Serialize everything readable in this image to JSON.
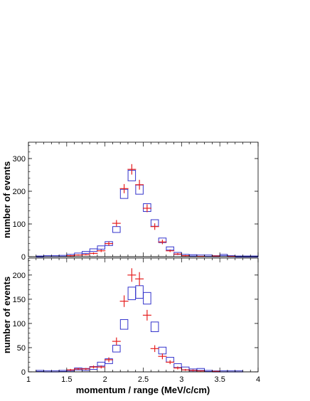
{
  "chart_data": [
    {
      "type": "scatter",
      "panel": "top",
      "xlabel": "",
      "ylabel": "number of events",
      "xlim": [
        1,
        4
      ],
      "ylim": [
        0,
        350
      ],
      "yticks": [
        "0",
        "100",
        "200",
        "300"
      ],
      "grid": false,
      "series": [
        {
          "marker": "box",
          "color": "#3333cc",
          "points": [
            {
              "x": 1.15,
              "y": 1,
              "err": 1
            },
            {
              "x": 1.25,
              "y": 2,
              "err": 1
            },
            {
              "x": 1.35,
              "y": 2,
              "err": 1
            },
            {
              "x": 1.45,
              "y": 3,
              "err": 1
            },
            {
              "x": 1.55,
              "y": 5,
              "err": 2
            },
            {
              "x": 1.65,
              "y": 8,
              "err": 3
            },
            {
              "x": 1.75,
              "y": 13,
              "err": 3
            },
            {
              "x": 1.85,
              "y": 20,
              "err": 4
            },
            {
              "x": 1.95,
              "y": 28,
              "err": 5
            },
            {
              "x": 2.05,
              "y": 40,
              "err": 6
            },
            {
              "x": 2.15,
              "y": 83,
              "err": 9
            },
            {
              "x": 2.25,
              "y": 192,
              "err": 14
            },
            {
              "x": 2.35,
              "y": 248,
              "err": 16
            },
            {
              "x": 2.45,
              "y": 205,
              "err": 14
            },
            {
              "x": 2.55,
              "y": 150,
              "err": 12
            },
            {
              "x": 2.65,
              "y": 103,
              "err": 10
            },
            {
              "x": 2.75,
              "y": 50,
              "err": 7
            },
            {
              "x": 2.85,
              "y": 25,
              "err": 5
            },
            {
              "x": 2.95,
              "y": 10,
              "err": 3
            },
            {
              "x": 3.05,
              "y": 5,
              "err": 2
            },
            {
              "x": 3.15,
              "y": 4,
              "err": 2
            },
            {
              "x": 3.25,
              "y": 3,
              "err": 2
            },
            {
              "x": 3.35,
              "y": 3,
              "err": 2
            },
            {
              "x": 3.45,
              "y": 2,
              "err": 1
            },
            {
              "x": 3.55,
              "y": 5,
              "err": 2
            },
            {
              "x": 3.65,
              "y": 2,
              "err": 1
            },
            {
              "x": 3.75,
              "y": 1,
              "err": 1
            },
            {
              "x": 3.85,
              "y": 1,
              "err": 1
            },
            {
              "x": 3.95,
              "y": 1,
              "err": 1
            }
          ]
        },
        {
          "marker": "cross",
          "color": "#e61e1e",
          "points": [
            {
              "x": 1.55,
              "y": 3,
              "err": 2
            },
            {
              "x": 1.65,
              "y": 5,
              "err": 2
            },
            {
              "x": 1.75,
              "y": 6,
              "err": 2
            },
            {
              "x": 1.85,
              "y": 10,
              "err": 3
            },
            {
              "x": 1.95,
              "y": 18,
              "err": 4
            },
            {
              "x": 2.05,
              "y": 40,
              "err": 6
            },
            {
              "x": 2.15,
              "y": 102,
              "err": 10
            },
            {
              "x": 2.25,
              "y": 208,
              "err": 14
            },
            {
              "x": 2.35,
              "y": 267,
              "err": 16
            },
            {
              "x": 2.45,
              "y": 220,
              "err": 15
            },
            {
              "x": 2.55,
              "y": 148,
              "err": 12
            },
            {
              "x": 2.65,
              "y": 92,
              "err": 10
            },
            {
              "x": 2.75,
              "y": 45,
              "err": 7
            },
            {
              "x": 2.85,
              "y": 18,
              "err": 4
            },
            {
              "x": 2.95,
              "y": 8,
              "err": 3
            },
            {
              "x": 3.05,
              "y": 3,
              "err": 2
            },
            {
              "x": 3.25,
              "y": 1,
              "err": 1
            },
            {
              "x": 3.45,
              "y": 2,
              "err": 1
            },
            {
              "x": 3.65,
              "y": 1,
              "err": 1
            }
          ]
        }
      ]
    },
    {
      "type": "scatter",
      "panel": "bottom",
      "xlabel": "momentum / range (MeV/c/cm)",
      "ylabel": "number of events",
      "xlim": [
        1,
        4
      ],
      "ylim": [
        0,
        235
      ],
      "xticks": [
        "1",
        "1.5",
        "2",
        "2.5",
        "3",
        "3.5",
        "4"
      ],
      "yticks": [
        "0",
        "50",
        "100",
        "150",
        "200"
      ],
      "grid": false,
      "series": [
        {
          "marker": "box",
          "color": "#3333cc",
          "points": [
            {
              "x": 1.15,
              "y": 2,
              "err": 1
            },
            {
              "x": 1.25,
              "y": 1,
              "err": 1
            },
            {
              "x": 1.35,
              "y": 1,
              "err": 1
            },
            {
              "x": 1.45,
              "y": 2,
              "err": 1
            },
            {
              "x": 1.55,
              "y": 3,
              "err": 1
            },
            {
              "x": 1.65,
              "y": 6,
              "err": 2
            },
            {
              "x": 1.75,
              "y": 5,
              "err": 2
            },
            {
              "x": 1.85,
              "y": 8,
              "err": 3
            },
            {
              "x": 1.95,
              "y": 16,
              "err": 4
            },
            {
              "x": 2.05,
              "y": 22,
              "err": 5
            },
            {
              "x": 2.15,
              "y": 48,
              "err": 7
            },
            {
              "x": 2.25,
              "y": 98,
              "err": 10
            },
            {
              "x": 2.35,
              "y": 162,
              "err": 13
            },
            {
              "x": 2.45,
              "y": 165,
              "err": 13
            },
            {
              "x": 2.55,
              "y": 152,
              "err": 12
            },
            {
              "x": 2.65,
              "y": 93,
              "err": 10
            },
            {
              "x": 2.75,
              "y": 44,
              "err": 7
            },
            {
              "x": 2.85,
              "y": 25,
              "err": 5
            },
            {
              "x": 2.95,
              "y": 13,
              "err": 4
            },
            {
              "x": 3.05,
              "y": 7,
              "err": 3
            },
            {
              "x": 3.15,
              "y": 4,
              "err": 2
            },
            {
              "x": 3.25,
              "y": 5,
              "err": 2
            },
            {
              "x": 3.35,
              "y": 2,
              "err": 1
            },
            {
              "x": 3.45,
              "y": 1,
              "err": 1
            },
            {
              "x": 3.55,
              "y": 1,
              "err": 1
            },
            {
              "x": 3.65,
              "y": 1,
              "err": 1
            },
            {
              "x": 3.75,
              "y": 1,
              "err": 1
            }
          ]
        },
        {
          "marker": "cross",
          "color": "#e61e1e",
          "points": [
            {
              "x": 1.55,
              "y": 4,
              "err": 2
            },
            {
              "x": 1.65,
              "y": 6,
              "err": 2
            },
            {
              "x": 1.75,
              "y": 6,
              "err": 2
            },
            {
              "x": 1.85,
              "y": 10,
              "err": 3
            },
            {
              "x": 1.95,
              "y": 10,
              "err": 3
            },
            {
              "x": 2.05,
              "y": 25,
              "err": 5
            },
            {
              "x": 2.15,
              "y": 63,
              "err": 8
            },
            {
              "x": 2.25,
              "y": 146,
              "err": 12
            },
            {
              "x": 2.35,
              "y": 200,
              "err": 14
            },
            {
              "x": 2.45,
              "y": 192,
              "err": 14
            },
            {
              "x": 2.55,
              "y": 117,
              "err": 11
            },
            {
              "x": 2.65,
              "y": 48,
              "err": 7
            },
            {
              "x": 2.75,
              "y": 32,
              "err": 6
            },
            {
              "x": 2.85,
              "y": 20,
              "err": 4
            },
            {
              "x": 2.95,
              "y": 8,
              "err": 3
            },
            {
              "x": 3.05,
              "y": 4,
              "err": 2
            },
            {
              "x": 3.15,
              "y": 3,
              "err": 2
            },
            {
              "x": 3.25,
              "y": 2,
              "err": 1
            },
            {
              "x": 3.45,
              "y": 1,
              "err": 1
            }
          ]
        }
      ]
    }
  ]
}
